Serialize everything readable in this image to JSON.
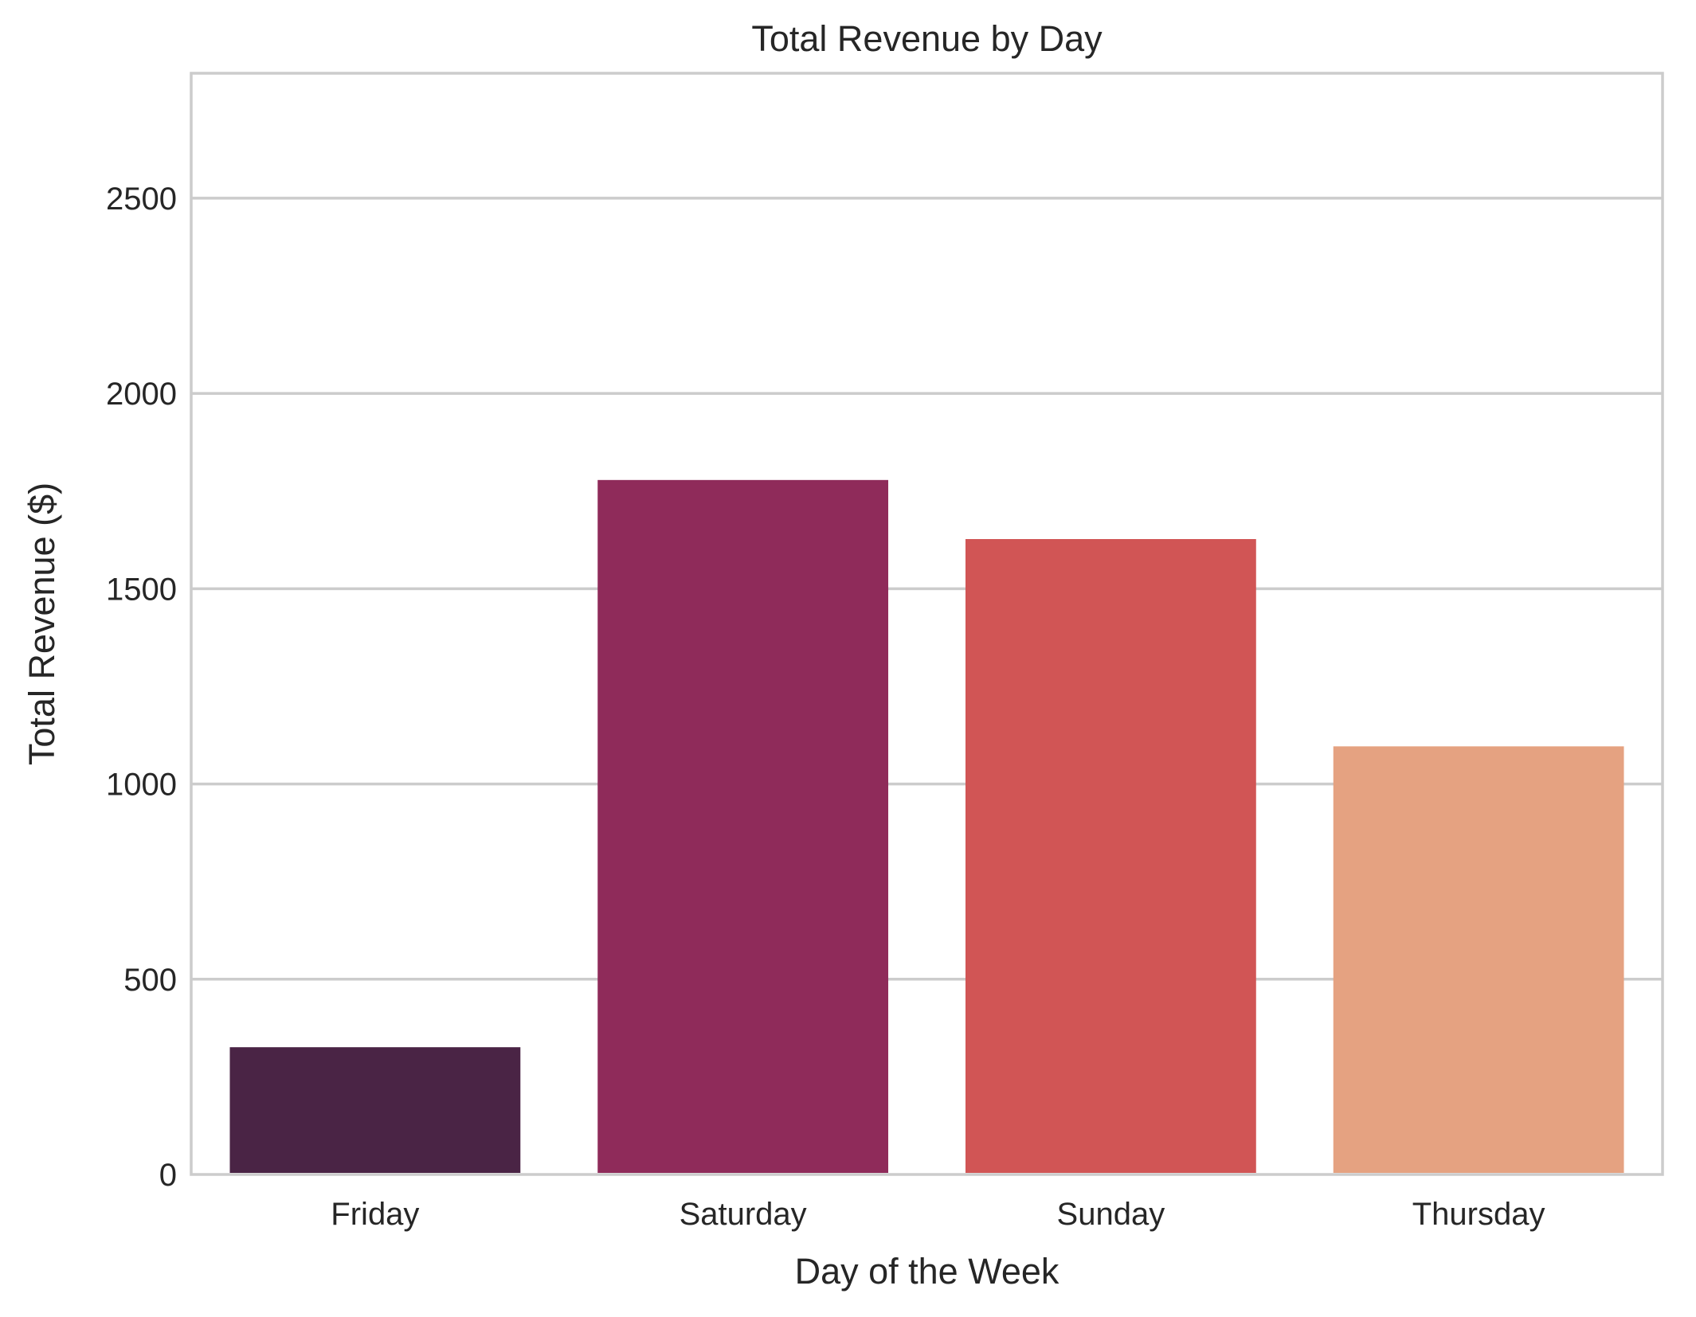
{
  "chart_data": {
    "type": "bar",
    "title": "Total Revenue by Day",
    "xlabel": "Day of the Week",
    "ylabel": "Total Revenue ($)",
    "categories": [
      "Friday",
      "Saturday",
      "Sunday",
      "Thursday"
    ],
    "values": [
      325.88,
      1778.4,
      1627.16,
      1096.33
    ],
    "colors": [
      "#4a2445",
      "#8f2b5a",
      "#d15555",
      "#e5a281"
    ],
    "ylim": [
      0,
      2820
    ],
    "yticks": [
      0,
      500,
      1000,
      1500,
      2000,
      2500
    ],
    "grid": "horizontal",
    "legend": "none"
  }
}
